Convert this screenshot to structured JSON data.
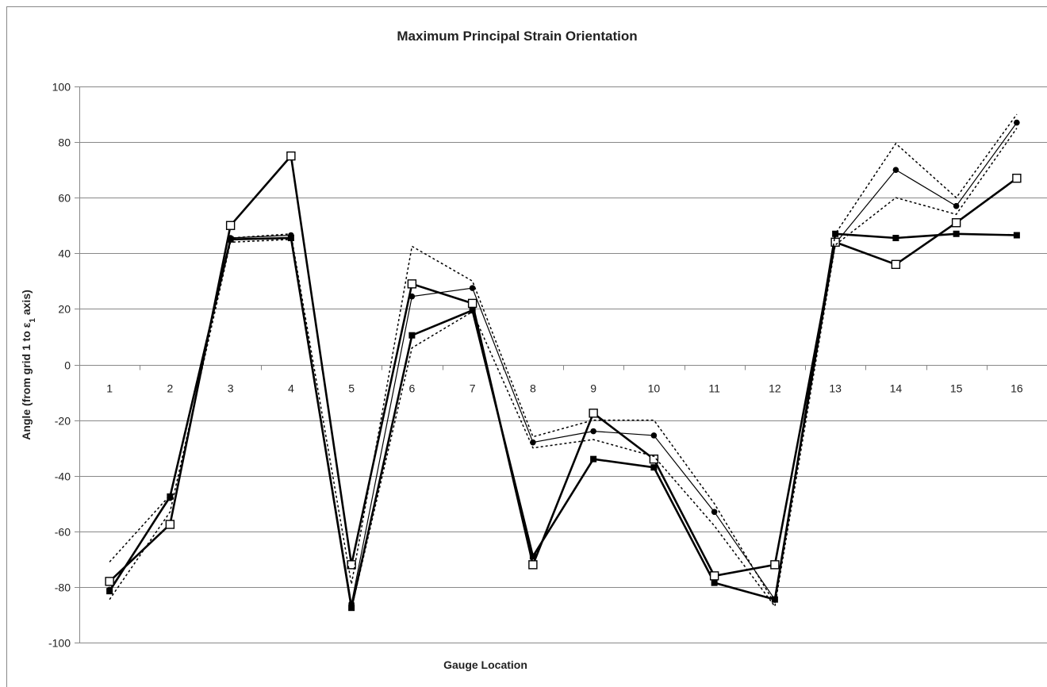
{
  "chart_data": {
    "type": "line",
    "title": "Maximum Principal Strain Orientation",
    "xlabel": "Gauge Location",
    "ylabel": {
      "prefix": "Angle (from grid 1 to ε",
      "subscript": "1",
      "suffix": " axis)"
    },
    "categories": [
      "1",
      "2",
      "3",
      "4",
      "5",
      "6",
      "7",
      "8",
      "9",
      "10",
      "11",
      "12",
      "13",
      "14",
      "15",
      "16"
    ],
    "yticks": [
      100,
      80,
      60,
      40,
      20,
      0,
      -20,
      -40,
      -60,
      -80,
      -100
    ],
    "ylim": [
      -100,
      100
    ],
    "grid": true,
    "legend": "none",
    "colors": {
      "line": "#000000",
      "grid": "#888888",
      "text": "#222222"
    },
    "series": [
      {
        "style": "solid-thick-square-filled",
        "values": [
          -81.5,
          -47.5,
          45,
          45.5,
          -87.5,
          10.5,
          19.5,
          -69,
          -34,
          -37,
          -78.5,
          -84.5,
          47,
          45.5,
          47,
          46.5
        ]
      },
      {
        "style": "solid-thin-circle",
        "values": [
          -81,
          -48,
          45.5,
          46.5,
          -86,
          24.5,
          27.5,
          -28,
          -24,
          -25.5,
          -53,
          -84.5,
          43.5,
          70,
          57,
          87
        ]
      },
      {
        "style": "solid-thick-square-open",
        "values": [
          -78,
          -57.5,
          50,
          75,
          -72,
          29,
          22,
          -72,
          -17.5,
          -34,
          -76,
          -72,
          44,
          36,
          51,
          67
        ]
      },
      {
        "style": "dotted",
        "values": [
          -71,
          -47,
          45.5,
          47,
          -79,
          42.5,
          30,
          -26,
          -20,
          -20,
          -50,
          -86,
          47,
          79.5,
          60,
          90
        ]
      },
      {
        "style": "dotted",
        "values": [
          -84.5,
          -53,
          44,
          45,
          -88,
          6,
          19,
          -30,
          -27,
          -33,
          -58,
          -87,
          43,
          60,
          54,
          85
        ]
      }
    ]
  }
}
